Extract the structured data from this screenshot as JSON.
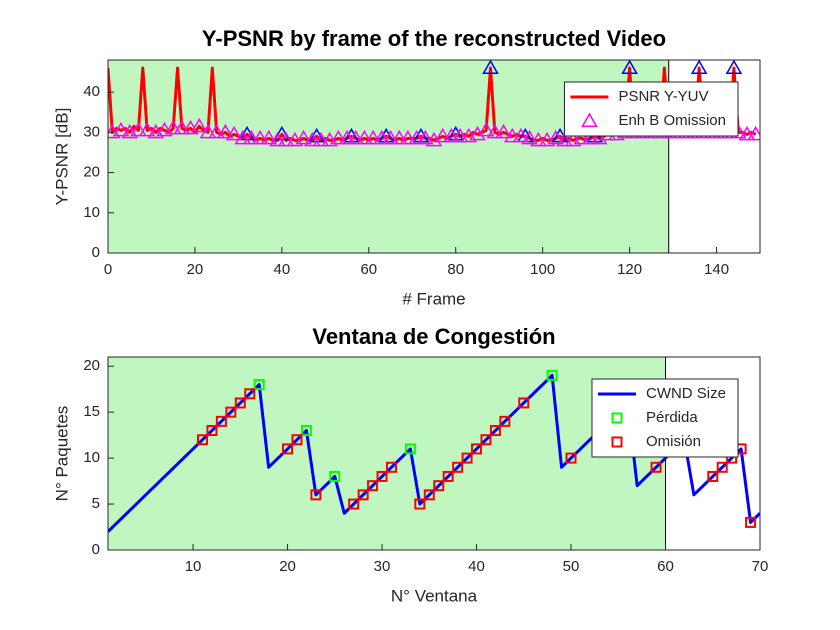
{
  "chart_data": [
    {
      "type": "line",
      "title": "Y-PSNR by frame of the reconstructed Video",
      "xlabel": "# Frame",
      "ylabel": "Y-PSNR [dB]",
      "xlim": [
        0,
        150
      ],
      "ylim": [
        0,
        48
      ],
      "xticks": [
        0,
        20,
        40,
        60,
        80,
        100,
        120,
        140
      ],
      "yticks": [
        0,
        10,
        20,
        30,
        40
      ],
      "shade_xlim": [
        0,
        129
      ],
      "shade_color": "#c0f7c0",
      "legend": "northeast",
      "series": [
        {
          "name": "PSNR Y-YUV",
          "color": "#ff0000",
          "line": true,
          "marker": "none",
          "x": [
            0,
            1,
            2,
            3,
            4,
            5,
            6,
            7,
            8,
            9,
            10,
            11,
            12,
            13,
            14,
            15,
            16,
            17,
            18,
            19,
            20,
            21,
            22,
            23,
            24,
            25,
            26,
            27,
            28,
            29,
            30,
            31,
            32,
            33,
            34,
            35,
            36,
            37,
            38,
            39,
            40,
            41,
            42,
            43,
            44,
            45,
            46,
            47,
            48,
            49,
            50,
            51,
            52,
            53,
            54,
            55,
            56,
            57,
            58,
            59,
            60,
            61,
            62,
            63,
            64,
            65,
            66,
            67,
            68,
            69,
            70,
            71,
            72,
            73,
            74,
            75,
            76,
            77,
            78,
            79,
            80,
            81,
            82,
            83,
            84,
            85,
            86,
            87,
            88,
            89,
            90,
            91,
            92,
            93,
            94,
            95,
            96,
            97,
            98,
            99,
            100,
            101,
            102,
            103,
            104,
            105,
            106,
            107,
            108,
            109,
            110,
            111,
            112,
            113,
            114,
            115,
            116,
            117,
            118,
            119,
            120,
            121,
            122,
            123,
            124,
            125,
            126,
            127,
            128,
            129,
            130,
            131,
            132,
            133,
            134,
            135,
            136,
            137,
            138,
            139,
            140,
            141,
            142,
            143,
            144,
            145,
            146,
            147,
            148,
            149
          ],
          "values": [
            46,
            30,
            31,
            30.5,
            31,
            30,
            31.5,
            30.5,
            46,
            30.5,
            31,
            30,
            31,
            30.5,
            30,
            31,
            46,
            31,
            30.5,
            31,
            30,
            31.5,
            30.5,
            30,
            46,
            30,
            29.5,
            30,
            29,
            29.5,
            29,
            28.5,
            29.5,
            28.5,
            28,
            28.5,
            28,
            28.5,
            28,
            28,
            29.5,
            28,
            28.5,
            28,
            28,
            28.5,
            28,
            28,
            29,
            28,
            28.5,
            28,
            28,
            28.5,
            28,
            28.5,
            29,
            28.5,
            28,
            28.5,
            28,
            28.5,
            28,
            28.5,
            29,
            28.5,
            28,
            28.5,
            28,
            28.5,
            28.5,
            28.5,
            29,
            28.5,
            28.5,
            28,
            28.5,
            29,
            28.5,
            29,
            29.5,
            29,
            29.5,
            29,
            30,
            29.5,
            30,
            30.5,
            46,
            30,
            29.5,
            30,
            29.5,
            29,
            29.5,
            29,
            29,
            28.5,
            28,
            28,
            28.5,
            28,
            28,
            28.5,
            29,
            28,
            28.5,
            28,
            28.5,
            28.5,
            28,
            28.5,
            29,
            28.5,
            29,
            29.5,
            29.5,
            30,
            29.5,
            30,
            46,
            30,
            30.5,
            30,
            30.5,
            30,
            30.5,
            30,
            46,
            30,
            30.5,
            30,
            30,
            30.5,
            30,
            30,
            46,
            30,
            30.5,
            30,
            30,
            30.5,
            30,
            30,
            46,
            30,
            30,
            29.5,
            30,
            29.5
          ]
        },
        {
          "color": "#0000ff",
          "line": false,
          "marker": "triangle",
          "x": [
            32,
            40,
            48,
            56,
            64,
            72,
            80,
            88,
            96,
            104,
            112,
            120,
            136,
            144
          ],
          "values": [
            29.5,
            29.5,
            29,
            29,
            29,
            29,
            29.5,
            46,
            29,
            29,
            29,
            46,
            46,
            46
          ]
        },
        {
          "name": "Enh B Omission",
          "color": "#ff00ff",
          "line": false,
          "marker": "triangle",
          "x": [
            1,
            3,
            5,
            7,
            9,
            11,
            13,
            15,
            17,
            19,
            21,
            23,
            25,
            27,
            29,
            31,
            33,
            35,
            37,
            39,
            41,
            43,
            45,
            47,
            49,
            51,
            53,
            55,
            57,
            59,
            61,
            63,
            65,
            67,
            69,
            71,
            73,
            75,
            77,
            79,
            81,
            83,
            85,
            87,
            89,
            91,
            93,
            95,
            97,
            99,
            101,
            103,
            105,
            107,
            109,
            111,
            113,
            115,
            117,
            119,
            121,
            123,
            125,
            127,
            129,
            131,
            133,
            135,
            137,
            139,
            141,
            143,
            145,
            147,
            149
          ],
          "values": [
            30,
            30.5,
            30,
            30.5,
            30.5,
            30,
            30.5,
            31,
            31,
            31,
            31.5,
            30,
            30,
            30,
            29.5,
            28.5,
            28.5,
            28.5,
            28.5,
            28,
            28,
            28,
            28.5,
            28,
            28,
            28,
            28.5,
            28.5,
            28.5,
            28.5,
            28.5,
            28.5,
            28.5,
            28.5,
            28.5,
            28.5,
            28.5,
            28,
            29,
            29,
            29,
            29,
            29.5,
            30.5,
            30,
            30,
            29,
            29,
            28.5,
            28,
            28,
            28.5,
            28,
            28,
            28.5,
            28.5,
            28.5,
            29.5,
            29.5,
            30,
            30,
            30,
            30,
            30,
            30,
            30,
            30,
            30,
            30,
            30,
            30,
            30,
            30,
            29.5,
            29.5
          ]
        }
      ]
    },
    {
      "type": "line",
      "title": "Ventana de Congestión",
      "xlabel": "N° Ventana",
      "ylabel": "N° Paquetes",
      "xlim": [
        1,
        70
      ],
      "ylim": [
        0,
        21
      ],
      "xticks": [
        10,
        20,
        30,
        40,
        50,
        60,
        70
      ],
      "yticks": [
        0,
        5,
        10,
        15,
        20
      ],
      "shade_xlim": [
        1,
        60
      ],
      "shade_color": "#c0f7c0",
      "legend": "northeast",
      "series": [
        {
          "name": "CWND Size",
          "color": "#0000ff",
          "line": true,
          "marker": "none",
          "x": [
            1,
            2,
            3,
            4,
            5,
            6,
            7,
            8,
            9,
            10,
            11,
            12,
            13,
            14,
            15,
            16,
            17,
            18,
            19,
            20,
            21,
            22,
            23,
            24,
            25,
            26,
            27,
            28,
            29,
            30,
            31,
            32,
            33,
            34,
            35,
            36,
            37,
            38,
            39,
            40,
            41,
            42,
            43,
            44,
            45,
            46,
            47,
            48,
            49,
            50,
            51,
            52,
            53,
            54,
            55,
            56,
            57,
            58,
            59,
            60,
            61,
            62,
            63,
            64,
            65,
            66,
            67,
            68,
            69,
            70
          ],
          "values": [
            2,
            3,
            4,
            5,
            6,
            7,
            8,
            9,
            10,
            11,
            12,
            13,
            14,
            15,
            16,
            17,
            18,
            9,
            10,
            11,
            12,
            13,
            6,
            7,
            8,
            4,
            5,
            6,
            7,
            8,
            9,
            10,
            11,
            5,
            6,
            7,
            8,
            9,
            10,
            11,
            12,
            13,
            14,
            15,
            16,
            17,
            18,
            19,
            9,
            10,
            11,
            12,
            13,
            14,
            15,
            16,
            7,
            8,
            9,
            10,
            11,
            12,
            6,
            7,
            8,
            9,
            10,
            11,
            3,
            4
          ]
        },
        {
          "name": "Pérdida",
          "color": "#00ff00",
          "line": false,
          "marker": "square",
          "x": [
            17,
            22,
            25,
            33,
            48
          ],
          "values": [
            18,
            13,
            8,
            11,
            19
          ]
        },
        {
          "name": "Omisión",
          "color": "#ff0000",
          "line": false,
          "marker": "square",
          "x": [
            11,
            12,
            13,
            14,
            15,
            16,
            20,
            21,
            23,
            27,
            28,
            29,
            30,
            31,
            34,
            35,
            36,
            37,
            38,
            39,
            40,
            41,
            42,
            43,
            45,
            50,
            59,
            65,
            66,
            67,
            68,
            69
          ],
          "values": [
            12,
            13,
            14,
            15,
            16,
            17,
            11,
            12,
            6,
            5,
            6,
            7,
            8,
            9,
            5,
            6,
            7,
            8,
            9,
            10,
            11,
            12,
            13,
            14,
            16,
            10,
            9,
            8,
            9,
            10,
            11,
            3
          ]
        }
      ]
    }
  ]
}
